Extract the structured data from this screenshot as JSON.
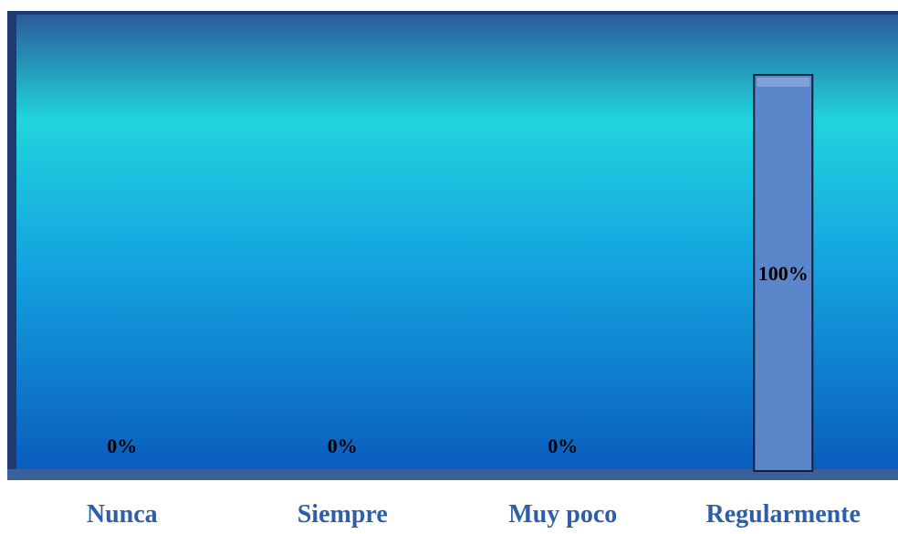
{
  "chart_data": {
    "type": "bar",
    "categories": [
      "Nunca",
      "Siempre",
      "Muy poco",
      "Regularmente"
    ],
    "values": [
      0,
      0,
      0,
      100
    ],
    "data_labels": [
      "0%",
      "0%",
      "0%",
      "100%"
    ],
    "ylim": [
      0,
      100
    ],
    "grid": false,
    "legend": "none"
  },
  "colors": {
    "frame": "#1f3a6e",
    "bg_top": "#2a5c9a",
    "bg_band": "#21d4dc",
    "bg_mid": "#14a3e0",
    "bg_bottom": "#0a5cbd",
    "floor": "#3b5f9a",
    "bar_fill": "#5b86c9",
    "bar_stroke": "#14203a",
    "category_text": "#2d5fa8",
    "label_text": "#000000"
  }
}
